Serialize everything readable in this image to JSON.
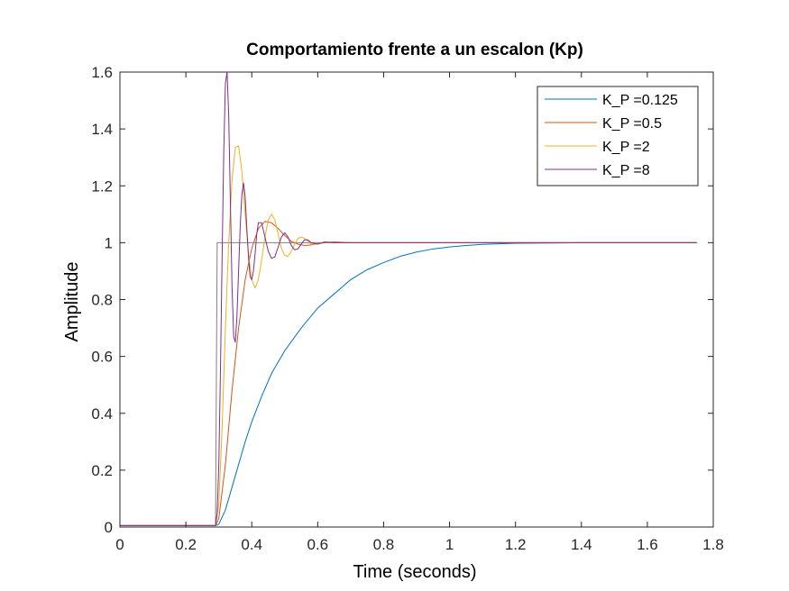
{
  "chart_data": {
    "type": "line",
    "title": "Comportamiento frente a un escalon (Kp)",
    "xlabel": "Time (seconds)",
    "ylabel": "Amplitude",
    "xlim": [
      0,
      1.8
    ],
    "ylim": [
      0,
      1.6
    ],
    "xticks": [
      0,
      0.2,
      0.4,
      0.6,
      0.8,
      1,
      1.2,
      1.4,
      1.6,
      1.8
    ],
    "xtick_labels": [
      "0",
      "0.2",
      "0.4",
      "0.6",
      "0.8",
      "1",
      "1.2",
      "1.4",
      "1.6",
      "1.8"
    ],
    "yticks": [
      0,
      0.2,
      0.4,
      0.6,
      0.8,
      1,
      1.2,
      1.4,
      1.6
    ],
    "ytick_labels": [
      "0",
      "0.2",
      "0.4",
      "0.6",
      "0.8",
      "1",
      "1.2",
      "1.4",
      "1.6"
    ],
    "grid": false,
    "legend_position": "top-right",
    "reference": {
      "color": "#808080",
      "x": [
        0,
        0.29,
        0.295,
        1.75
      ],
      "y": [
        0.005,
        0.005,
        1.0,
        1.0
      ]
    },
    "series": [
      {
        "name": "K_P =0.125",
        "color": "#0072BD",
        "x": [
          0,
          0.29,
          0.3,
          0.32,
          0.34,
          0.36,
          0.38,
          0.4,
          0.43,
          0.46,
          0.5,
          0.55,
          0.6,
          0.65,
          0.7,
          0.75,
          0.8,
          0.85,
          0.9,
          0.95,
          1.0,
          1.05,
          1.1,
          1.2,
          1.3,
          1.4,
          1.5,
          1.6,
          1.75
        ],
        "y": [
          0.005,
          0.005,
          0.01,
          0.06,
          0.14,
          0.22,
          0.3,
          0.37,
          0.46,
          0.54,
          0.62,
          0.7,
          0.77,
          0.82,
          0.87,
          0.905,
          0.93,
          0.952,
          0.967,
          0.978,
          0.985,
          0.99,
          0.994,
          0.998,
          0.999,
          1.0,
          1.0,
          1.0,
          1.0
        ]
      },
      {
        "name": "K_P =0.5",
        "color": "#D95319",
        "x": [
          0,
          0.29,
          0.3,
          0.32,
          0.34,
          0.36,
          0.38,
          0.4,
          0.42,
          0.44,
          0.46,
          0.48,
          0.5,
          0.52,
          0.54,
          0.56,
          0.58,
          0.6,
          0.62,
          0.65,
          0.7,
          0.8,
          1.0,
          1.4,
          1.75
        ],
        "y": [
          0.005,
          0.005,
          0.03,
          0.22,
          0.48,
          0.7,
          0.87,
          0.98,
          1.05,
          1.075,
          1.07,
          1.05,
          1.025,
          1.005,
          0.995,
          0.99,
          0.992,
          0.996,
          1.0,
          1.003,
          1.0,
          1.0,
          1.0,
          1.0,
          1.0
        ]
      },
      {
        "name": "K_P =2",
        "color": "#EDB120",
        "x": [
          0,
          0.29,
          0.3,
          0.31,
          0.32,
          0.33,
          0.34,
          0.35,
          0.36,
          0.37,
          0.38,
          0.39,
          0.4,
          0.41,
          0.42,
          0.43,
          0.44,
          0.45,
          0.46,
          0.47,
          0.48,
          0.49,
          0.5,
          0.51,
          0.52,
          0.53,
          0.54,
          0.55,
          0.56,
          0.57,
          0.58,
          0.6,
          0.62,
          0.65,
          0.7,
          0.8,
          1.0,
          1.4,
          1.75
        ],
        "y": [
          0.005,
          0.005,
          0.08,
          0.35,
          0.7,
          1.0,
          1.22,
          1.335,
          1.34,
          1.25,
          1.1,
          0.96,
          0.87,
          0.84,
          0.87,
          0.94,
          1.02,
          1.08,
          1.1,
          1.08,
          1.03,
          0.98,
          0.955,
          0.952,
          0.97,
          0.995,
          1.015,
          1.02,
          1.015,
          1.005,
          0.995,
          0.995,
          1.003,
          1.001,
          1.0,
          1.0,
          1.0,
          1.0,
          1.0
        ]
      },
      {
        "name": "K_P =8",
        "color": "#7E2F8E",
        "x": [
          0,
          0.29,
          0.295,
          0.3,
          0.305,
          0.31,
          0.315,
          0.32,
          0.325,
          0.33,
          0.335,
          0.34,
          0.345,
          0.35,
          0.355,
          0.36,
          0.365,
          0.37,
          0.375,
          0.38,
          0.385,
          0.39,
          0.395,
          0.4,
          0.405,
          0.41,
          0.415,
          0.42,
          0.43,
          0.44,
          0.45,
          0.46,
          0.47,
          0.48,
          0.49,
          0.5,
          0.51,
          0.52,
          0.53,
          0.54,
          0.55,
          0.56,
          0.57,
          0.58,
          0.6,
          0.62,
          0.65,
          0.7,
          0.8,
          1.0,
          1.4,
          1.75
        ],
        "y": [
          0.005,
          0.005,
          0.05,
          0.22,
          0.55,
          0.95,
          1.32,
          1.56,
          1.6,
          1.45,
          1.15,
          0.85,
          0.67,
          0.65,
          0.74,
          0.9,
          1.06,
          1.17,
          1.21,
          1.16,
          1.05,
          0.95,
          0.88,
          0.87,
          0.9,
          0.96,
          1.03,
          1.07,
          1.07,
          1.02,
          0.97,
          0.945,
          0.95,
          0.985,
          1.02,
          1.035,
          1.02,
          0.99,
          0.975,
          0.978,
          0.995,
          1.01,
          1.01,
          1.0,
          0.995,
          1.002,
          1.0,
          1.0,
          1.0,
          1.0,
          1.0,
          1.0
        ]
      }
    ]
  }
}
